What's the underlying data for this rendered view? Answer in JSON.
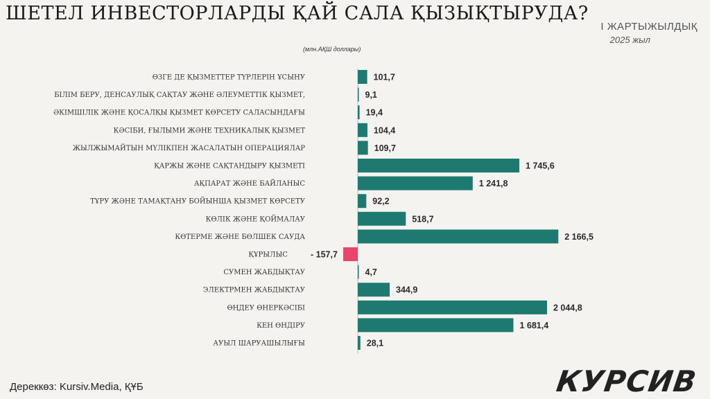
{
  "title": "ШЕТЕЛ ИНВЕСТОРЛАРДЫ ҚАЙ САЛА  ҚЫЗЫҚТЫРУДА?",
  "period": "І ЖАРТЫЖЫЛДЫҚ",
  "year": "2025 жыл",
  "source": "Дереккөз: Kursiv.Media, ҚҰБ",
  "logo": "КУРСИВ",
  "chart_data": {
    "type": "bar",
    "orientation": "horizontal",
    "unit_label": "(млн.АҚШ доллары)",
    "categories": [
      "ӨЗГЕ ДЕ ҚЫЗМЕТТЕР ТҮРЛЕРІН ҰСЫНУ",
      "БІЛІМ БЕРУ, ДЕНСАУЛЫҚ САҚТАУ ЖӘНЕ ӘЛЕУМЕТТІК ҚЫЗМЕТ,",
      "ӘКІМШІЛІК ЖӘНЕ ҚОСАЛҚЫ ҚЫЗМЕТ КӨРСЕТУ САЛАСЫНДАҒЫ",
      "КӘСІБИ, ҒЫЛЫМИ ЖӘНЕ ТЕХНИКАЛЫҚ ҚЫЗМЕТ",
      "ЖЫЛЖЫМАЙТЫН МҮЛІКПЕН ЖАСАЛАТЫН  ОПЕРАЦИЯЛАР",
      "ҚАРЖЫ ЖӘНЕ САҚТАНДЫРУ ҚЫЗМЕТІ",
      "АҚПАРАТ ЖӘНЕ БАЙЛАНЫС",
      "ТҰРУ ЖӘНЕ ТАМАҚТАНУ БОЙЫНША ҚЫЗМЕТ КӨРСЕТУ",
      "КӨЛІК ЖӘНЕ ҚОЙМАЛАУ",
      "КӨТЕРМЕ ЖӘНЕ БӨЛШЕК САУДА",
      "ҚҰРЫЛЫС",
      "СУМЕН ЖАБДЫҚТАУ",
      "ЭЛЕКТРМЕН ЖАБДЫҚТАУ",
      "ӨҢДЕУ ӨНЕРКӘСІБІ",
      "КЕН ӨНДІРУ",
      "АУЫЛ ШАРУАШЫЛЫҒЫ"
    ],
    "values": [
      101.7,
      9.1,
      19.4,
      104.4,
      109.7,
      1745.6,
      1241.8,
      92.2,
      518.7,
      2166.5,
      -157.7,
      4.7,
      344.9,
      2044.8,
      1681.4,
      28.1
    ],
    "value_labels": [
      "101,7",
      "9,1",
      "19,4",
      "104,4",
      "109,7",
      "1 745,6",
      "1 241,8",
      "92,2",
      "518,7",
      "2 166,5",
      "- 157,7",
      "4,7",
      "344,9",
      "2 044,8",
      "1 681,4",
      "28,1"
    ],
    "colors": {
      "positive": "#1e7a70",
      "negative": "#e8476a"
    }
  }
}
